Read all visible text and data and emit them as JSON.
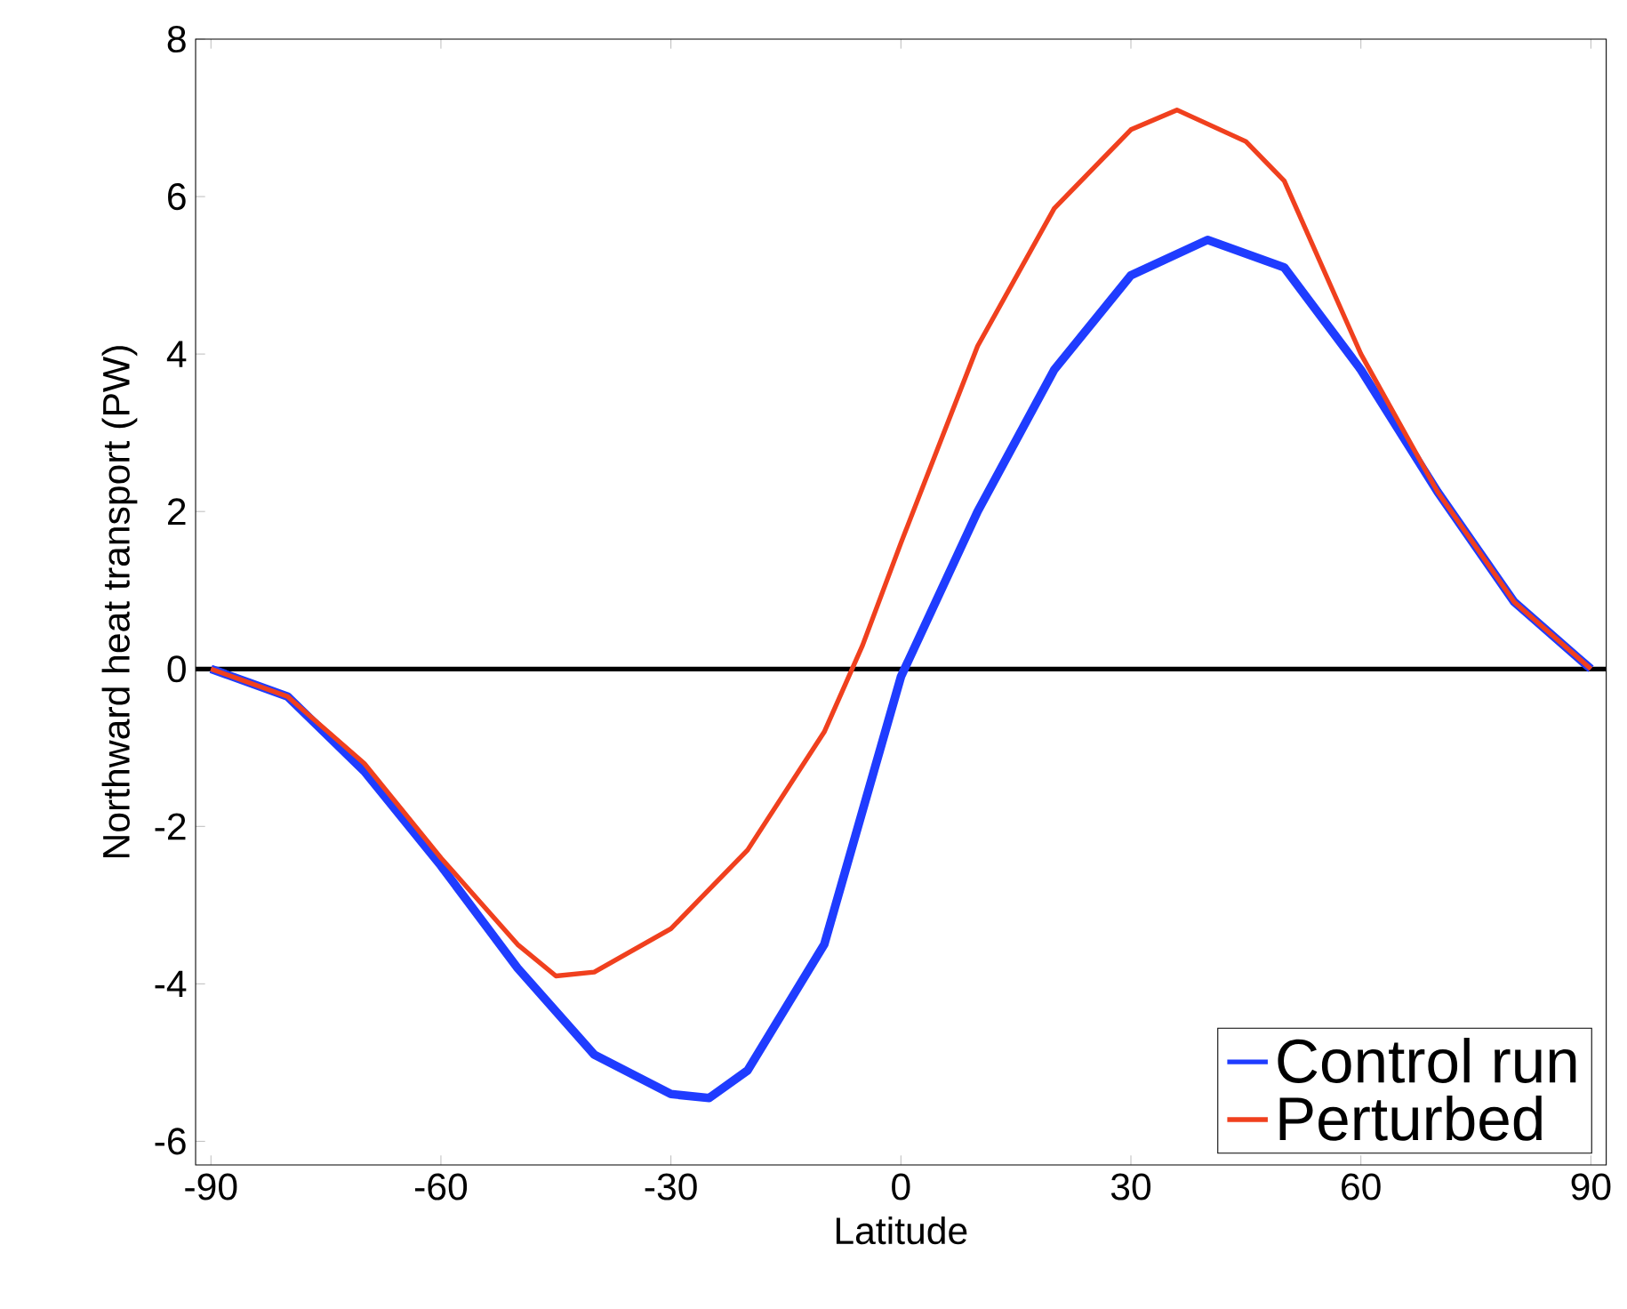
{
  "chart_data": {
    "type": "line",
    "xlabel": "Latitude",
    "ylabel": "Northward heat transport (PW)",
    "series": [
      {
        "name": "Control run",
        "color": "#1f3cff",
        "x": [
          -90,
          -80,
          -70,
          -60,
          -50,
          -40,
          -30,
          -25,
          -20,
          -10,
          0,
          10,
          20,
          30,
          40,
          50,
          60,
          70,
          80,
          90
        ],
        "values": [
          0,
          -0.35,
          -1.3,
          -2.5,
          -3.8,
          -4.9,
          -5.4,
          -5.45,
          -5.1,
          -3.5,
          -0.1,
          2.0,
          3.8,
          5.0,
          5.45,
          5.1,
          3.8,
          2.25,
          0.85,
          0
        ]
      },
      {
        "name": "Perturbed",
        "color": "#f0401e",
        "x": [
          -90,
          -80,
          -70,
          -60,
          -50,
          -45,
          -40,
          -30,
          -20,
          -10,
          -5,
          0,
          10,
          20,
          30,
          36,
          45,
          50,
          60,
          70,
          80,
          90
        ],
        "values": [
          0,
          -0.35,
          -1.2,
          -2.4,
          -3.5,
          -3.9,
          -3.85,
          -3.3,
          -2.3,
          -0.8,
          0.3,
          1.6,
          4.1,
          5.85,
          6.85,
          7.1,
          6.7,
          6.2,
          4.0,
          2.25,
          0.85,
          0
        ]
      }
    ],
    "xlim": [
      -92,
      92
    ],
    "ylim": [
      -6.3,
      8
    ],
    "xticks": [
      -90,
      -60,
      -30,
      0,
      30,
      60,
      90
    ],
    "yticks": [
      -6,
      -4,
      -2,
      0,
      2,
      4,
      6,
      8
    ],
    "ref_lines": [
      {
        "axis": "y",
        "value": 0,
        "color": "#000000"
      }
    ],
    "legend": "bottom right",
    "grid": false,
    "marker": "none",
    "line_style": "solid"
  }
}
